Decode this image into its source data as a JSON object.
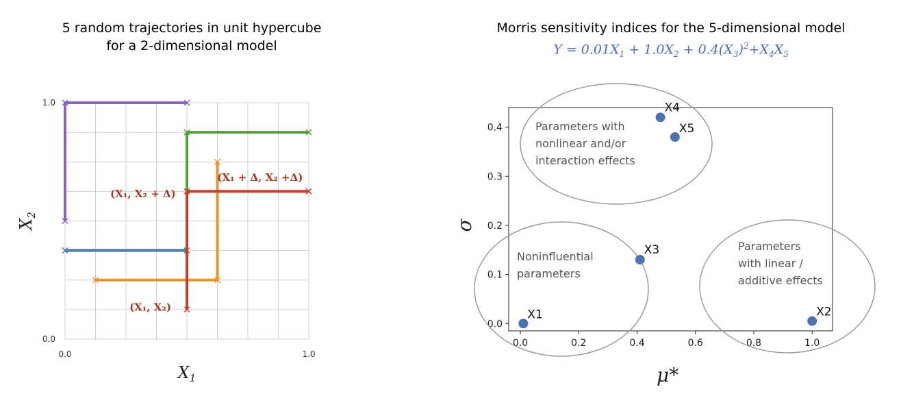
{
  "chart_data": [
    {
      "type": "line",
      "title_line1": "5 random trajectories in unit hypercube",
      "title_line2": "for a 2-dimensional model",
      "xlabel": "X1",
      "ylabel": "X2",
      "xlim": [
        0,
        1
      ],
      "ylim": [
        0,
        1
      ],
      "grid": true,
      "x_ticks": [
        {
          "v": 0,
          "label": "0.0"
        },
        {
          "v": 1,
          "label": "1.0"
        }
      ],
      "y_ticks": [
        {
          "v": 0,
          "label": "0.0"
        },
        {
          "v": 1,
          "label": "1.0"
        }
      ],
      "series": [
        {
          "color": "#8e5fc4",
          "points": [
            [
              0.0,
              0.5
            ],
            [
              0.0,
              1.0
            ],
            [
              0.5,
              1.0
            ]
          ]
        },
        {
          "color": "#4c78b0",
          "points": [
            [
              0.5,
              0.375
            ],
            [
              0.0,
              0.375
            ]
          ]
        },
        {
          "color": "#e5952c",
          "points": [
            [
              0.125,
              0.25
            ],
            [
              0.625,
              0.25
            ],
            [
              0.625,
              0.75
            ]
          ]
        },
        {
          "color": "#52a13a",
          "points": [
            [
              1.0,
              0.875
            ],
            [
              0.5,
              0.875
            ],
            [
              0.5,
              0.375
            ]
          ]
        },
        {
          "color": "#c33c2c",
          "points": [
            [
              0.5,
              0.125
            ],
            [
              0.5,
              0.625
            ],
            [
              1.0,
              0.625
            ]
          ]
        }
      ],
      "annotations": [
        {
          "text": "(X₁ + Δ, X₂ +Δ)",
          "x": 0.8,
          "y": 0.67
        },
        {
          "text": "(X₁, X₂ + Δ)",
          "x": 0.32,
          "y": 0.6
        },
        {
          "text": "(X₁, X₂)",
          "x": 0.35,
          "y": 0.12
        }
      ]
    },
    {
      "type": "scatter",
      "title": "Morris sensitivity indices for the 5-dimensional model",
      "formula": {
        "parts": [
          {
            "t": "Y = 0.01X"
          },
          {
            "sub": "1"
          },
          {
            "t": " + 1.0X"
          },
          {
            "sub": "2"
          },
          {
            "t": " + 0.4(X"
          },
          {
            "sub": "3"
          },
          {
            "t": ")"
          },
          {
            "sup": "2"
          },
          {
            "t": "+X"
          },
          {
            "sub": "4"
          },
          {
            "t": "X"
          },
          {
            "sub": "5"
          }
        ]
      },
      "xlabel": "μ*",
      "ylabel": "σ",
      "xlim": [
        -0.04,
        1.07
      ],
      "ylim": [
        -0.015,
        0.44
      ],
      "x_ticks": [
        {
          "v": 0,
          "label": "0.0"
        },
        {
          "v": 0.2,
          "label": "0.2"
        },
        {
          "v": 0.4,
          "label": "0.4"
        },
        {
          "v": 0.6,
          "label": "0.6"
        },
        {
          "v": 0.8,
          "label": "0.8"
        },
        {
          "v": 1.0,
          "label": "1.0"
        }
      ],
      "y_ticks": [
        {
          "v": 0,
          "label": "0.0"
        },
        {
          "v": 0.1,
          "label": "0.1"
        },
        {
          "v": 0.2,
          "label": "0.2"
        },
        {
          "v": 0.3,
          "label": "0.3"
        },
        {
          "v": 0.4,
          "label": "0.4"
        }
      ],
      "point_color": "#4c72b0",
      "points": [
        {
          "label": "X1",
          "x": 0.01,
          "y": 0.0
        },
        {
          "label": "X2",
          "x": 1.0,
          "y": 0.005
        },
        {
          "label": "X3",
          "x": 0.41,
          "y": 0.13
        },
        {
          "label": "X4",
          "x": 0.48,
          "y": 0.42
        },
        {
          "label": "X5",
          "x": 0.53,
          "y": 0.38
        }
      ],
      "zones": [
        {
          "lines": [
            "Parameters with",
            "nonlinear and/or",
            "interaction effects"
          ]
        },
        {
          "lines": [
            "Noninfluential",
            "parameters"
          ]
        },
        {
          "lines": [
            "Parameters",
            "with linear /",
            "additive effects"
          ]
        }
      ]
    }
  ]
}
